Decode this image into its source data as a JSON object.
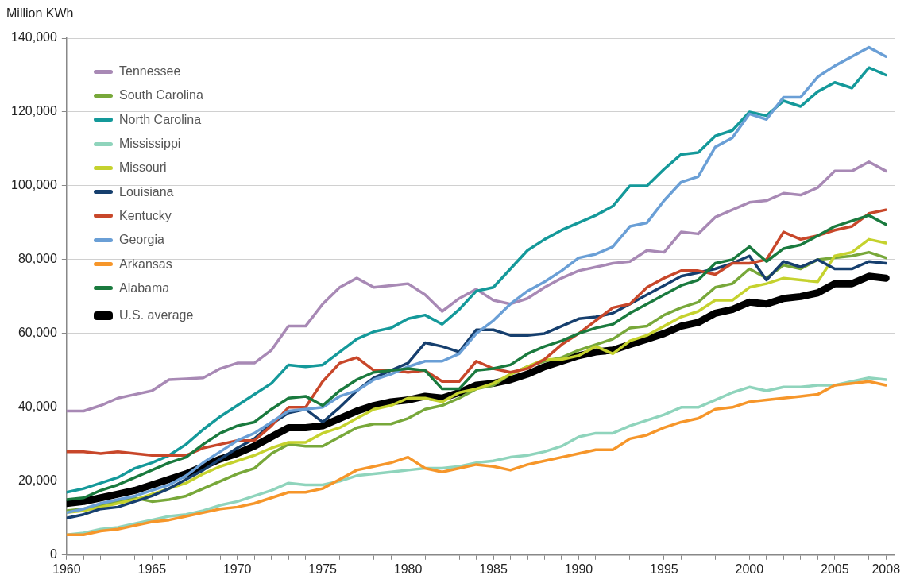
{
  "chart_data": {
    "type": "line",
    "ylabel": "Million KWh",
    "x": [
      1960,
      1961,
      1962,
      1963,
      1964,
      1965,
      1966,
      1967,
      1968,
      1969,
      1970,
      1971,
      1972,
      1973,
      1974,
      1975,
      1976,
      1977,
      1978,
      1979,
      1980,
      1981,
      1982,
      1983,
      1984,
      1985,
      1986,
      1987,
      1988,
      1989,
      1990,
      1991,
      1992,
      1993,
      1994,
      1995,
      1996,
      1997,
      1998,
      1999,
      2000,
      2001,
      2002,
      2003,
      2004,
      2005,
      2006,
      2007,
      2008
    ],
    "xlim": [
      1960,
      2008.5
    ],
    "xticks": [
      1960,
      {
        "value": 1961,
        "label": null
      },
      {
        "value": 1962,
        "label": null
      },
      {
        "value": 1963,
        "label": null
      },
      {
        "value": 1964,
        "label": null
      },
      1965,
      {
        "value": 1966,
        "label": null
      },
      {
        "value": 1967,
        "label": null
      },
      {
        "value": 1968,
        "label": null
      },
      {
        "value": 1969,
        "label": null
      },
      1970,
      {
        "value": 1971,
        "label": null
      },
      {
        "value": 1972,
        "label": null
      },
      {
        "value": 1973,
        "label": null
      },
      {
        "value": 1974,
        "label": null
      },
      1975,
      {
        "value": 1976,
        "label": null
      },
      {
        "value": 1977,
        "label": null
      },
      {
        "value": 1978,
        "label": null
      },
      {
        "value": 1979,
        "label": null
      },
      1980,
      {
        "value": 1981,
        "label": null
      },
      {
        "value": 1982,
        "label": null
      },
      {
        "value": 1983,
        "label": null
      },
      {
        "value": 1984,
        "label": null
      },
      1985,
      {
        "value": 1986,
        "label": null
      },
      {
        "value": 1987,
        "label": null
      },
      {
        "value": 1988,
        "label": null
      },
      {
        "value": 1989,
        "label": null
      },
      1990,
      {
        "value": 1991,
        "label": null
      },
      {
        "value": 1992,
        "label": null
      },
      {
        "value": 1993,
        "label": null
      },
      {
        "value": 1994,
        "label": null
      },
      1995,
      {
        "value": 1996,
        "label": null
      },
      {
        "value": 1997,
        "label": null
      },
      {
        "value": 1998,
        "label": null
      },
      {
        "value": 1999,
        "label": null
      },
      2000,
      {
        "value": 2001,
        "label": null
      },
      {
        "value": 2002,
        "label": null
      },
      {
        "value": 2003,
        "label": null
      },
      {
        "value": 2004,
        "label": null
      },
      2005,
      {
        "value": 2006,
        "label": null
      },
      {
        "value": 2007,
        "label": null
      },
      2008
    ],
    "ylim": [
      0,
      140000
    ],
    "yticks": [
      {
        "value": 0,
        "label": "0"
      },
      {
        "value": 20000,
        "label": "20,000"
      },
      {
        "value": 40000,
        "label": "40,000"
      },
      {
        "value": 60000,
        "label": "60,000"
      },
      {
        "value": 80000,
        "label": "80,000"
      },
      {
        "value": 100000,
        "label": "100,000"
      },
      {
        "value": 120000,
        "label": "120,000"
      },
      {
        "value": 140000,
        "label": "140,000"
      }
    ],
    "grid": "y",
    "legend": "top left",
    "marker": "none",
    "line_style": "solid",
    "series": [
      {
        "name": "Tennessee",
        "color": "#a889b5",
        "values": [
          39000,
          39000,
          40500,
          42500,
          43500,
          44500,
          47500,
          47700,
          48000,
          50500,
          52000,
          52000,
          55500,
          62000,
          62000,
          68000,
          72500,
          75000,
          72500,
          73000,
          73500,
          70500,
          66000,
          69500,
          72000,
          69000,
          68000,
          69500,
          72500,
          75000,
          77000,
          78000,
          79000,
          79500,
          82500,
          82000,
          87500,
          87000,
          91500,
          93500,
          95500,
          96000,
          98000,
          97500,
          99500,
          104000,
          104000,
          106500,
          104000
        ]
      },
      {
        "name": "South Carolina",
        "color": "#78a83a",
        "values": [
          12000,
          12500,
          13500,
          14500,
          15500,
          14500,
          15000,
          16000,
          18000,
          20000,
          22000,
          23500,
          27500,
          30000,
          29500,
          29500,
          32000,
          34500,
          35500,
          35500,
          37000,
          39500,
          40500,
          42500,
          45000,
          46000,
          49000,
          51000,
          52500,
          53500,
          55500,
          57000,
          58500,
          61500,
          62000,
          65000,
          67000,
          68500,
          72500,
          73500,
          77500,
          75000,
          78500,
          77500,
          80000,
          80500,
          81000,
          82000,
          80500
        ]
      },
      {
        "name": "North Carolina",
        "color": "#14999a",
        "values": [
          17000,
          18000,
          19500,
          21000,
          23500,
          25000,
          27000,
          30000,
          34000,
          37500,
          40500,
          43500,
          46500,
          51500,
          51000,
          51500,
          55000,
          58500,
          60500,
          61500,
          64000,
          65000,
          62500,
          66500,
          71500,
          72500,
          77500,
          82500,
          85500,
          88000,
          90000,
          92000,
          94500,
          100000,
          100000,
          104500,
          108500,
          109000,
          113500,
          115000,
          120000,
          119000,
          123000,
          121500,
          125500,
          128000,
          126500,
          132000,
          130000
        ]
      },
      {
        "name": "Mississippi",
        "color": "#8fd4bc",
        "values": [
          5500,
          6000,
          7000,
          7500,
          8500,
          9500,
          10500,
          11000,
          12000,
          13500,
          14500,
          16000,
          17500,
          19500,
          19000,
          19000,
          20000,
          21500,
          22000,
          22500,
          23000,
          23500,
          23500,
          24000,
          25000,
          25500,
          26500,
          27000,
          28000,
          29500,
          32000,
          33000,
          33000,
          35000,
          36500,
          38000,
          40000,
          40000,
          42000,
          44000,
          45500,
          44500,
          45500,
          45500,
          46000,
          46000,
          47000,
          48000,
          47500
        ]
      },
      {
        "name": "Missouri",
        "color": "#c5d22e",
        "values": [
          11500,
          12000,
          13000,
          14000,
          15000,
          16500,
          18000,
          19500,
          22000,
          24000,
          25500,
          27000,
          29000,
          30500,
          30500,
          33000,
          34500,
          37000,
          39500,
          40500,
          42500,
          42500,
          41500,
          44000,
          45000,
          46500,
          49000,
          51000,
          53000,
          53000,
          54000,
          56500,
          54500,
          58000,
          59500,
          62000,
          64500,
          66000,
          69000,
          69000,
          72500,
          73500,
          75000,
          74500,
          74000,
          81000,
          82000,
          85500,
          84500
        ]
      },
      {
        "name": "Louisiana",
        "color": "#163f6e",
        "values": [
          10000,
          11000,
          12500,
          13000,
          14500,
          16000,
          18000,
          20500,
          23000,
          26000,
          29000,
          31500,
          35500,
          38500,
          39500,
          36000,
          40000,
          44500,
          48000,
          50000,
          52000,
          57500,
          56500,
          55000,
          61000,
          61000,
          59500,
          59500,
          60000,
          62000,
          64000,
          64500,
          65500,
          68000,
          70500,
          73000,
          75500,
          76500,
          77500,
          79000,
          81000,
          74500,
          79500,
          78000,
          80000,
          77500,
          77500,
          79500,
          79000
        ]
      },
      {
        "name": "Kentucky",
        "color": "#c8472a",
        "values": [
          28000,
          28000,
          27500,
          28000,
          27500,
          27000,
          27000,
          27000,
          29000,
          30000,
          31000,
          31000,
          35000,
          40000,
          40000,
          47000,
          52000,
          53500,
          50000,
          50000,
          49500,
          50000,
          47000,
          47000,
          52500,
          50500,
          49500,
          50500,
          53000,
          57000,
          60000,
          63500,
          67000,
          68000,
          72500,
          75000,
          77000,
          77000,
          76000,
          79000,
          79000,
          80000,
          87500,
          85500,
          86500,
          88000,
          89000,
          92500,
          93500
        ]
      },
      {
        "name": "Georgia",
        "color": "#6a9fd6",
        "values": [
          11500,
          12500,
          14000,
          15000,
          16000,
          17500,
          19000,
          21500,
          25000,
          28000,
          31000,
          33000,
          36000,
          39000,
          39500,
          40000,
          43000,
          44500,
          47500,
          49000,
          51000,
          52500,
          52500,
          54500,
          60000,
          63500,
          68000,
          71500,
          74000,
          77000,
          80500,
          81500,
          83500,
          89000,
          90000,
          96000,
          101000,
          102500,
          110500,
          113000,
          119500,
          118000,
          124000,
          124000,
          129500,
          132500,
          135000,
          137500,
          135000
        ]
      },
      {
        "name": "Arkansas",
        "color": "#f6962a",
        "values": [
          5500,
          5500,
          6500,
          7000,
          8000,
          9000,
          9500,
          10500,
          11500,
          12500,
          13000,
          14000,
          15500,
          17000,
          17000,
          18000,
          20500,
          23000,
          24000,
          25000,
          26500,
          23500,
          22500,
          23500,
          24500,
          24000,
          23000,
          24500,
          25500,
          26500,
          27500,
          28500,
          28500,
          31500,
          32500,
          34500,
          36000,
          37000,
          39500,
          40000,
          41500,
          42000,
          42500,
          43000,
          43500,
          46000,
          46500,
          47000,
          46000
        ]
      },
      {
        "name": "Alabama",
        "color": "#1a7a3e",
        "values": [
          15000,
          15500,
          17500,
          19000,
          21000,
          23000,
          25000,
          26500,
          30000,
          33000,
          35000,
          36000,
          39500,
          42500,
          43000,
          40500,
          44500,
          47500,
          49500,
          50000,
          50500,
          50000,
          45000,
          45000,
          50000,
          50500,
          51500,
          54500,
          56500,
          58000,
          60000,
          61500,
          62500,
          65500,
          68000,
          70500,
          73000,
          74500,
          79000,
          80000,
          83500,
          79500,
          83000,
          84000,
          86500,
          89000,
          90500,
          92000,
          89500
        ]
      },
      {
        "name": "U.S. average",
        "color": "#000000",
        "values": [
          14000,
          14500,
          15500,
          16500,
          17500,
          19000,
          20500,
          22000,
          24000,
          26000,
          27500,
          29500,
          32000,
          34500,
          34500,
          35000,
          37000,
          39000,
          40500,
          41500,
          42000,
          43000,
          42500,
          44000,
          46000,
          46500,
          47500,
          49000,
          51000,
          52500,
          54000,
          55000,
          55500,
          57000,
          58500,
          60000,
          62000,
          63000,
          65500,
          66500,
          68500,
          68000,
          69500,
          70000,
          71000,
          73500,
          73500,
          75500,
          75000
        ]
      }
    ]
  }
}
